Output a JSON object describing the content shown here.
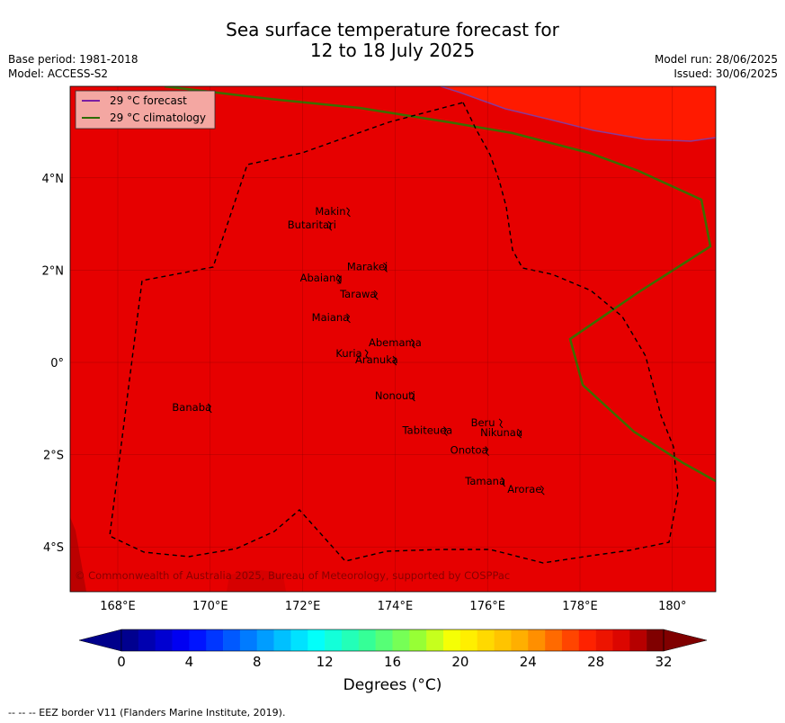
{
  "title": {
    "line1": "Sea surface temperature forecast for",
    "line2": "12 to 18 July 2025"
  },
  "meta": {
    "base_period": "Base period: 1981-2018",
    "model": "Model: ACCESS-S2",
    "model_run": "Model run: 28/06/2025",
    "issued": "Issued: 30/06/2025"
  },
  "legend": {
    "items": [
      {
        "label": "29 °C  forecast",
        "color": "#7b1fa2"
      },
      {
        "label": "29 °C  climatology",
        "color": "#2e6b00"
      }
    ]
  },
  "colors": {
    "sea_main": "#e60000",
    "sea_warm": "#ff1a00",
    "eez": "#000000"
  },
  "axes": {
    "x_ticks": [
      "168°E",
      "170°E",
      "172°E",
      "174°E",
      "176°E",
      "178°E",
      "180°"
    ],
    "y_ticks": [
      "4°N",
      "2°N",
      "0°",
      "2°S",
      "4°S"
    ]
  },
  "places": [
    {
      "name": "Makin",
      "lon": 172.6,
      "lat": 3.2
    },
    {
      "name": "Butaritari",
      "lon": 172.2,
      "lat": 2.9
    },
    {
      "name": "Marakei",
      "lon": 173.4,
      "lat": 2.0
    },
    {
      "name": "Abaiang",
      "lon": 172.4,
      "lat": 1.75
    },
    {
      "name": "Tarawa",
      "lon": 173.2,
      "lat": 1.4
    },
    {
      "name": "Maiana",
      "lon": 172.6,
      "lat": 0.9
    },
    {
      "name": "Abemama",
      "lon": 174.0,
      "lat": 0.35
    },
    {
      "name": "Kuria",
      "lon": 173.0,
      "lat": 0.12
    },
    {
      "name": "Aranuka",
      "lon": 173.6,
      "lat": -0.02
    },
    {
      "name": "Nonouti",
      "lon": 174.0,
      "lat": -0.8
    },
    {
      "name": "Banaba",
      "lon": 169.6,
      "lat": -1.05
    },
    {
      "name": "Beru",
      "lon": 175.9,
      "lat": -1.38
    },
    {
      "name": "Tabiteuea",
      "lon": 174.7,
      "lat": -1.55
    },
    {
      "name": "Nikunau",
      "lon": 176.3,
      "lat": -1.6
    },
    {
      "name": "Onotoa",
      "lon": 175.6,
      "lat": -1.98
    },
    {
      "name": "Tamana",
      "lon": 175.95,
      "lat": -2.65
    },
    {
      "name": "Arorae",
      "lon": 176.8,
      "lat": -2.83
    }
  ],
  "copyright": "© Commonwealth of Australia 2025, Bureau of Meteorology, supported by COSPPac",
  "colorbar": {
    "label": "Degrees ($^\\circ$C)",
    "display_label": "Degrees (°C)",
    "ticks": [
      "0",
      "4",
      "8",
      "12",
      "16",
      "20",
      "24",
      "28",
      "32"
    ],
    "range": [
      0,
      32
    ],
    "step": 1
  },
  "footer": "--  --  -- EEZ border V11 (Flanders Marine Institute, 2019)."
}
